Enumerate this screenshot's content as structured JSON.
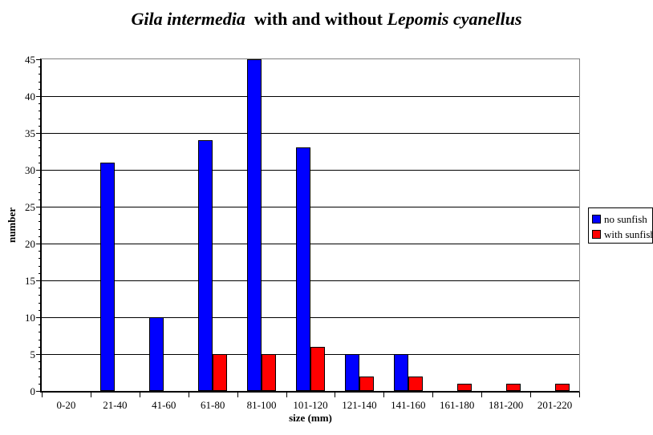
{
  "title": {
    "species_1": "Gila intermedia",
    "middle": "  with and without ",
    "species_2": "Lepomis cyanellus"
  },
  "chart_data": {
    "type": "bar",
    "title": "Gila intermedia with and without Lepomis cyanellus",
    "categories": [
      "0-20",
      "21-40",
      "41-60",
      "61-80",
      "81-100",
      "101-120",
      "121-140",
      "141-160",
      "161-180",
      "181-200",
      "201-220"
    ],
    "series": [
      {
        "name": "no sunfish",
        "color": "#0000ff",
        "values": [
          0,
          31,
          10,
          34,
          45,
          33,
          5,
          5,
          0,
          0,
          0
        ]
      },
      {
        "name": "with sunfish",
        "color": "#ff0000",
        "values": [
          0,
          0,
          0,
          5,
          5,
          6,
          2,
          2,
          1,
          1,
          1
        ]
      }
    ],
    "xlabel": "size (mm)",
    "ylabel": "number",
    "ylim": [
      0,
      45
    ],
    "y_major_step": 5,
    "y_minor_step": 1,
    "grid": "horizontal-major",
    "legend_position": "right",
    "plot_border_color": "#808080",
    "axis_color": "#000000",
    "background": "#ffffff"
  }
}
